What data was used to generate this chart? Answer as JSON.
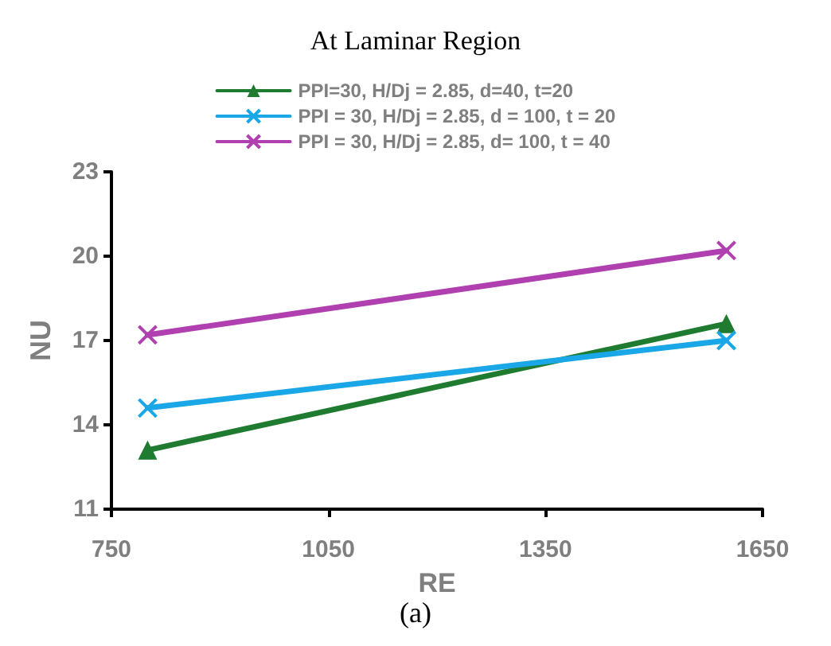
{
  "chart_data": {
    "type": "line",
    "title": "At Laminar Region",
    "xlabel": "RE",
    "ylabel": "NU",
    "annotations": [
      "(a)"
    ],
    "x": [
      800,
      1600
    ],
    "series": [
      {
        "name": "PPI=30, H/Dj = 2.85, d=40, t=20",
        "color": "#1e7b30",
        "values": [
          13.1,
          17.6
        ],
        "marker": "triangle"
      },
      {
        "name": "PPI = 30, H/Dj = 2.85, d = 100, t = 20",
        "color": "#1aa7e8",
        "values": [
          14.6,
          17.0
        ],
        "marker": "cross"
      },
      {
        "name": "PPI = 30, H/Dj = 2.85, d= 100, t = 40",
        "color": "#b03fb0",
        "values": [
          17.2,
          20.2
        ],
        "marker": "cross"
      }
    ],
    "xlim": [
      750,
      1650
    ],
    "xticks": [
      750,
      1050,
      1350,
      1650
    ],
    "ylim": [
      11,
      23
    ],
    "yticks": [
      11,
      14,
      17,
      20,
      23
    ],
    "grid": false,
    "legend": "top",
    "line_style": "solid"
  }
}
